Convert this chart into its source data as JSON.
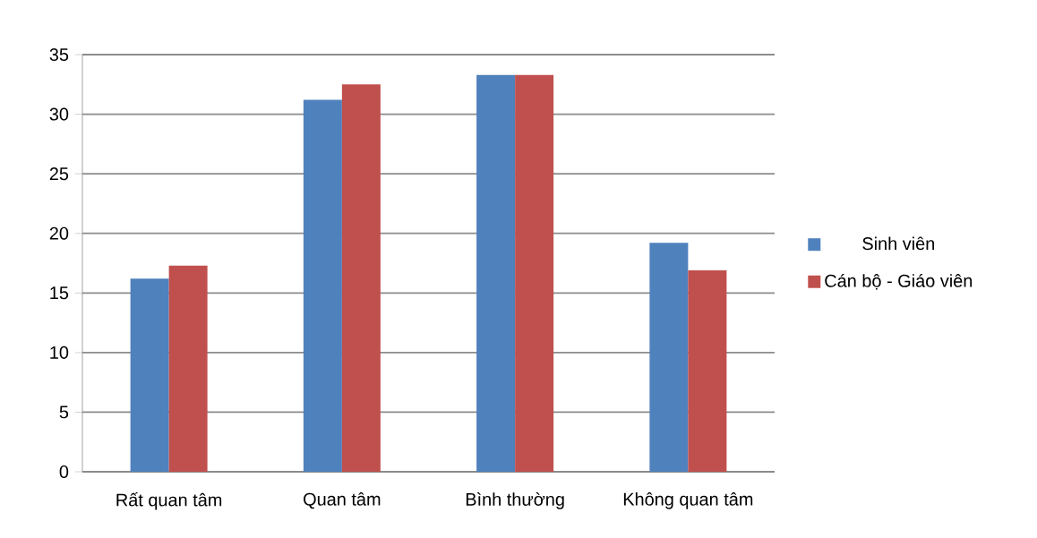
{
  "chart_data": {
    "type": "bar",
    "categories": [
      "Rất quan tâm",
      "Quan tâm",
      "Bình thường",
      "Không quan tâm"
    ],
    "series": [
      {
        "name": "Sinh viên",
        "color": "#4f81bd",
        "values": [
          16.2,
          31.2,
          33.3,
          19.2
        ]
      },
      {
        "name": "Cán bộ - Giáo viên",
        "color": "#c0504d",
        "values": [
          17.3,
          32.5,
          33.3,
          16.9
        ]
      }
    ],
    "ylim": [
      0,
      35
    ],
    "yticks": [
      0,
      5,
      10,
      15,
      20,
      25,
      30,
      35
    ],
    "grid": "y",
    "legend": "right"
  }
}
